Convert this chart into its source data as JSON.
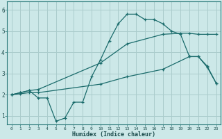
{
  "xlabel": "Humidex (Indice chaleur)",
  "bg_color": "#cce8e8",
  "grid_color": "#aacccc",
  "line_color": "#1a6b6b",
  "xlim": [
    -0.5,
    23.5
  ],
  "ylim": [
    0.6,
    6.4
  ],
  "xticks": [
    0,
    1,
    2,
    3,
    4,
    5,
    6,
    7,
    8,
    9,
    10,
    11,
    12,
    13,
    14,
    15,
    16,
    17,
    18,
    19,
    20,
    21,
    22,
    23
  ],
  "yticks": [
    1,
    2,
    3,
    4,
    5,
    6
  ],
  "line1_x": [
    0,
    1,
    2,
    3,
    4,
    5,
    6,
    7,
    8,
    9,
    10,
    11,
    12,
    13,
    14,
    15,
    16,
    17,
    18,
    19,
    20,
    21,
    22,
    23
  ],
  "line1_y": [
    2.0,
    2.1,
    2.2,
    1.85,
    1.85,
    0.75,
    0.9,
    1.65,
    1.65,
    2.85,
    3.65,
    4.55,
    5.35,
    5.8,
    5.8,
    5.55,
    5.55,
    5.35,
    5.0,
    4.85,
    3.8,
    3.8,
    3.35,
    2.55
  ],
  "line2_x": [
    0,
    1,
    2,
    3,
    10,
    13,
    17,
    19,
    20,
    21,
    22,
    23
  ],
  "line2_y": [
    2.0,
    2.1,
    2.2,
    2.25,
    3.5,
    4.4,
    4.85,
    4.9,
    4.9,
    4.85,
    4.85,
    4.85
  ],
  "line3_x": [
    0,
    1,
    2,
    3,
    10,
    13,
    17,
    20,
    21,
    22,
    23
  ],
  "line3_y": [
    2.0,
    2.05,
    2.1,
    2.1,
    2.5,
    2.85,
    3.2,
    3.8,
    3.8,
    3.3,
    2.55
  ]
}
